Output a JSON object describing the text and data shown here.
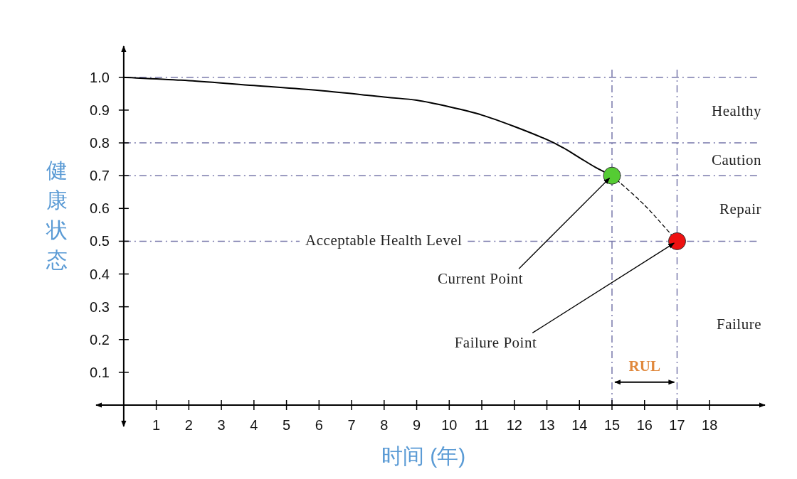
{
  "chart_data": {
    "type": "line",
    "xlabel": "时间 (年)",
    "ylabel": "健康状态",
    "xlim": [
      -0.85,
      19.7
    ],
    "ylim": [
      -0.065,
      1.095
    ],
    "xticks": [
      1,
      2,
      3,
      4,
      5,
      6,
      7,
      8,
      9,
      10,
      11,
      12,
      13,
      14,
      15,
      16,
      17,
      18
    ],
    "yticks": [
      0.1,
      0.2,
      0.3,
      0.4,
      0.5,
      0.6,
      0.7,
      0.8,
      0.9,
      {
        "value": 1,
        "label": "1.0"
      }
    ],
    "grid": false,
    "series": [
      {
        "color": "#000000",
        "line_style": "solid",
        "marker": "none",
        "x": [
          0,
          2,
          4,
          6,
          8,
          9,
          10,
          11,
          12,
          13,
          13.5,
          14,
          14.5,
          15
        ],
        "values": [
          1.0,
          0.99,
          0.975,
          0.96,
          0.94,
          0.93,
          0.91,
          0.885,
          0.85,
          0.81,
          0.785,
          0.755,
          0.725,
          0.7
        ]
      },
      {
        "color": "#000000",
        "line_style": "dashed",
        "marker": "none",
        "x": [
          15,
          16,
          17
        ],
        "values": [
          0.7,
          0.61,
          0.5
        ]
      },
      {
        "type": "scatter",
        "color": "#55cc33",
        "marker": "circle",
        "x": [
          15
        ],
        "values": [
          0.7
        ]
      },
      {
        "type": "scatter",
        "color": "#ee1111",
        "marker": "circle",
        "x": [
          17
        ],
        "values": [
          0.5
        ]
      }
    ],
    "ref_lines": [
      {
        "axis": "y",
        "value": 1.0,
        "color": "#7777aa",
        "line_style": "dashdot"
      },
      {
        "axis": "y",
        "value": 0.8,
        "color": "#7777aa",
        "line_style": "dashdot"
      },
      {
        "axis": "y",
        "value": 0.7,
        "color": "#7777aa",
        "line_style": "dashdot"
      },
      {
        "axis": "y",
        "value": 0.5,
        "label": "Acceptable Health Level",
        "color": "#7777aa",
        "line_style": "dashdot"
      },
      {
        "axis": "x",
        "value": 15,
        "color": "#7777aa",
        "line_style": "dashdot"
      },
      {
        "axis": "x",
        "value": 17,
        "color": "#7777aa",
        "line_style": "dashdot"
      }
    ],
    "annotations": [
      "Healthy",
      "Caution",
      "Repair",
      "Failure",
      {
        "text": "Current Point",
        "x": 15,
        "y": 0.7
      },
      {
        "text": "Failure Point",
        "x": 17,
        "y": 0.5
      },
      "RUL"
    ]
  }
}
